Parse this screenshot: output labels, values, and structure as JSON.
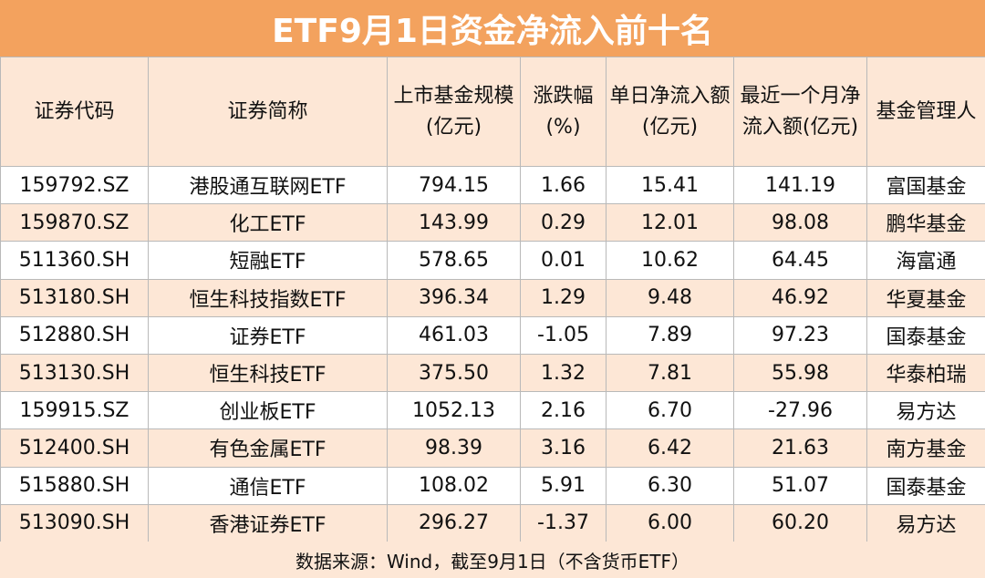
{
  "title": "ETF9月1日资金净流入前十名",
  "headers": [
    "证券代码",
    "证券简称",
    "上市基金规模(亿元)",
    "涨跌幅(%)",
    "单日净流入额(亿元)",
    "最近一个月净流入额(亿元)",
    "基金管理人"
  ],
  "rows": [
    [
      "159792.SZ",
      "港股通互联网ETF",
      "794.15",
      "1.66",
      "15.41",
      "141.19",
      "富国基金"
    ],
    [
      "159870.SZ",
      "化工ETF",
      "143.99",
      "0.29",
      "12.01",
      "98.08",
      "鹏华基金"
    ],
    [
      "511360.SH",
      "短融ETF",
      "578.65",
      "0.01",
      "10.62",
      "64.45",
      "海富通"
    ],
    [
      "513180.SH",
      "恒生科技指数ETF",
      "396.34",
      "1.29",
      "9.48",
      "46.92",
      "华夏基金"
    ],
    [
      "512880.SH",
      "证券ETF",
      "461.03",
      "-1.05",
      "7.89",
      "97.23",
      "国泰基金"
    ],
    [
      "513130.SH",
      "恒生科技ETF",
      "375.50",
      "1.32",
      "7.81",
      "55.98",
      "华泰柏瑞"
    ],
    [
      "159915.SZ",
      "创业板ETF",
      "1052.13",
      "2.16",
      "6.70",
      "-27.96",
      "易方达"
    ],
    [
      "512400.SH",
      "有色金属ETF",
      "98.39",
      "3.16",
      "6.42",
      "21.63",
      "南方基金"
    ],
    [
      "515880.SH",
      "通信ETF",
      "108.02",
      "5.91",
      "6.30",
      "51.07",
      "国泰基金"
    ],
    [
      "513090.SH",
      "香港证券ETF",
      "296.27",
      "-1.37",
      "6.00",
      "60.20",
      "易方达"
    ]
  ],
  "footer": "数据来源：Wind，截至9月1日（不含货币ETF）",
  "colors": {
    "title_bg": "#f3a25e",
    "stripe": "#fde7d6",
    "border": "#b9b9b9"
  }
}
